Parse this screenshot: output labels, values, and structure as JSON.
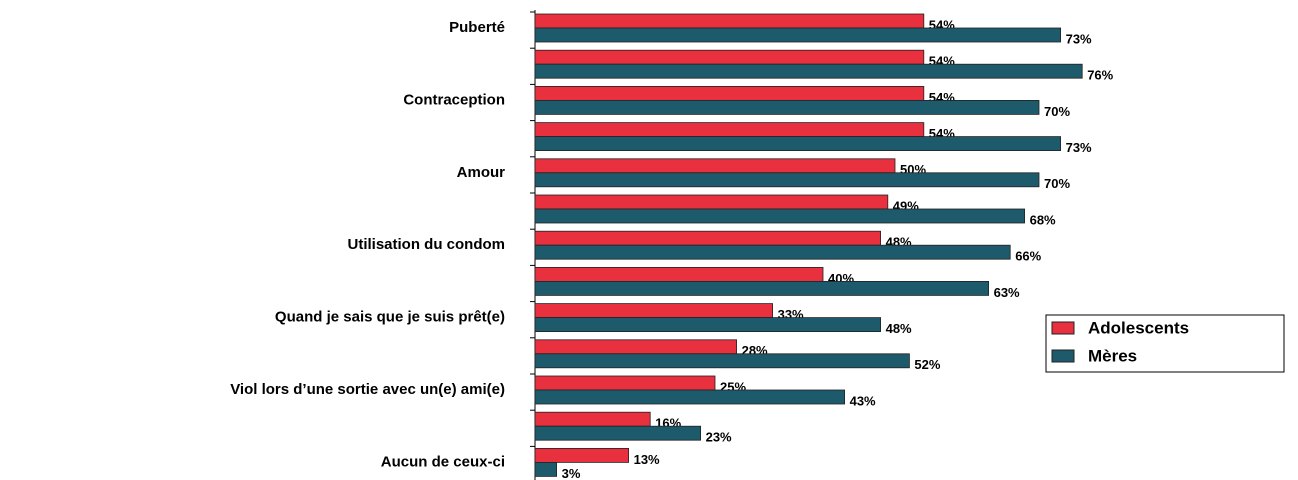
{
  "chart_data": {
    "type": "bar",
    "orientation": "horizontal",
    "categories": [
      "Puberté",
      null,
      "Contraception",
      null,
      "Amour",
      null,
      "Utilisation du condom",
      null,
      "Quand je sais que je suis prêt(e)",
      null,
      "Viol lors d’une sortie avec un(e) ami(e)",
      null,
      "Aucun de ceux-ci"
    ],
    "series": [
      {
        "name": "Adolescents",
        "color": "#e8303f",
        "values": [
          54,
          54,
          54,
          54,
          50,
          49,
          48,
          40,
          33,
          28,
          25,
          16,
          13
        ],
        "value_labels": [
          "54%",
          "54%",
          "54%",
          "54%",
          "50%",
          "49%",
          "48%",
          "40%",
          "33%",
          "28%",
          "25%",
          "16%",
          "13%"
        ]
      },
      {
        "name": "Mères",
        "color": "#1d5a6c",
        "values": [
          73,
          76,
          70,
          73,
          70,
          68,
          66,
          63,
          48,
          52,
          43,
          23,
          3
        ],
        "value_labels": [
          "73%",
          "76%",
          "70%",
          "73%",
          "70%",
          "68%",
          "66%",
          "63%",
          "48%",
          "52%",
          "43%",
          "23%",
          "3%"
        ]
      }
    ],
    "xlim": [
      0,
      100
    ],
    "legend": "right"
  }
}
